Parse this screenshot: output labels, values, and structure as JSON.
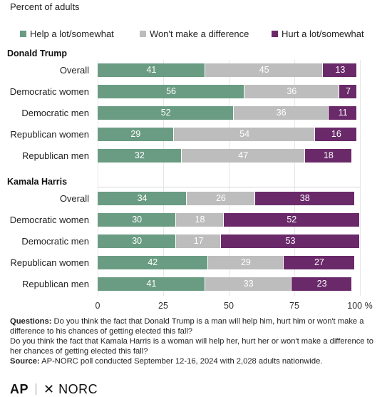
{
  "subtitle": "Percent of adults",
  "colors": {
    "help": "#6a9c83",
    "nodiff": "#bdbdbd",
    "hurt": "#6a2a6a"
  },
  "chart_data": {
    "type": "bar",
    "orientation": "horizontal",
    "stacked": true,
    "xlim": [
      0,
      100
    ],
    "xticks": [
      "0",
      "25",
      "50",
      "75",
      "100 %"
    ],
    "grid": true,
    "legend_position": "top",
    "series_names": [
      "Help a lot/somewhat",
      "Won't make a difference",
      "Hurt a lot/somewhat"
    ],
    "groups": [
      {
        "name": "Donald Trump",
        "rows": [
          {
            "label": "Overall",
            "values": [
              41,
              45,
              13
            ]
          },
          {
            "label": "Democratic women",
            "values": [
              56,
              36,
              7
            ]
          },
          {
            "label": "Democratic men",
            "values": [
              52,
              36,
              11
            ]
          },
          {
            "label": "Republican women",
            "values": [
              29,
              54,
              16
            ]
          },
          {
            "label": "Republican men",
            "values": [
              32,
              47,
              18
            ]
          }
        ]
      },
      {
        "name": "Kamala Harris",
        "rows": [
          {
            "label": "Overall",
            "values": [
              34,
              26,
              38
            ]
          },
          {
            "label": "Democratic women",
            "values": [
              30,
              18,
              52
            ]
          },
          {
            "label": "Democratic men",
            "values": [
              30,
              17,
              53
            ]
          },
          {
            "label": "Republican women",
            "values": [
              42,
              29,
              27
            ]
          },
          {
            "label": "Republican men",
            "values": [
              41,
              33,
              23
            ]
          }
        ]
      }
    ]
  },
  "notes": {
    "questions_label": "Questions:",
    "question_1": "Do you think the fact that Donald Trump is a man will help him, hurt him or won't make a difference to his chances of getting elected this fall?",
    "question_2": "Do you think the fact that Kamala Harris is a woman will help her, hurt her or won't make a difference to her chances of getting elected this fall?",
    "source_label": "Source:",
    "source_text": "AP-NORC poll conducted September 12-16, 2024 with 2,028 adults nationwide."
  },
  "footer": {
    "ap": "AP",
    "norc": "NORC"
  }
}
